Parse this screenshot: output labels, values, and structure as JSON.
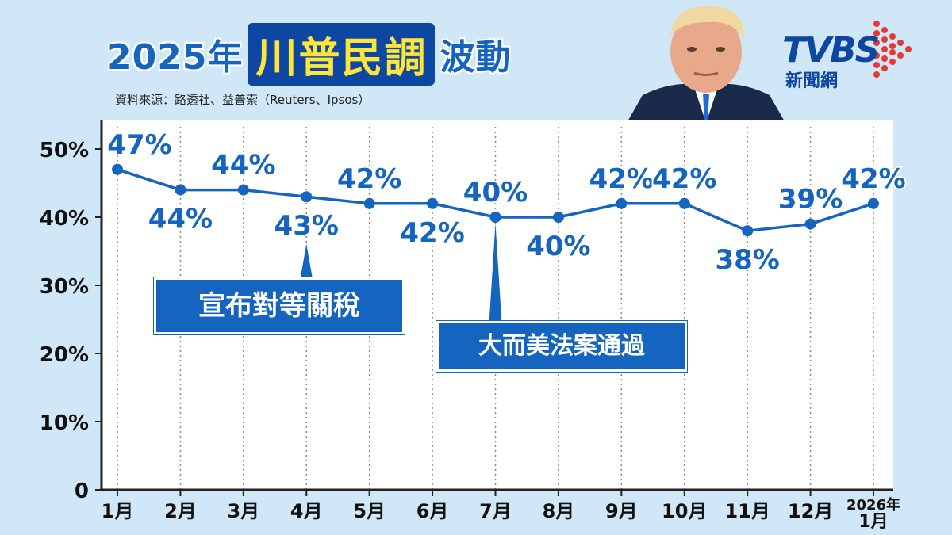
{
  "header": {
    "title_prefix": "2025年",
    "title_highlight": "川普民調",
    "title_suffix": "波動",
    "source": "資料來源：路透社、益普索（Reuters、Ipsos）"
  },
  "logo": {
    "text": "TVBS",
    "sub": "新聞網"
  },
  "colors": {
    "accent": "#1565c0",
    "highlight": "#fde53b",
    "background": "#cfe7f6",
    "line": "#1565c0"
  },
  "annotations": [
    {
      "text": "宣布對等關稅",
      "month_index": 3
    },
    {
      "text": "大而美法案通過",
      "month_index": 6
    }
  ],
  "chart_data": {
    "type": "line",
    "categories": [
      "1月",
      "2月",
      "3月",
      "4月",
      "5月",
      "6月",
      "7月",
      "8月",
      "9月",
      "10月",
      "11月",
      "12月",
      "2026年\n1月"
    ],
    "values": [
      47,
      44,
      44,
      43,
      42,
      42,
      40,
      40,
      42,
      42,
      38,
      39,
      42
    ],
    "labels": [
      "47%",
      "44%",
      "44%",
      "43%",
      "42%",
      "42%",
      "40%",
      "40%",
      "42%",
      "42%",
      "38%",
      "39%",
      "42%"
    ],
    "label_pos": [
      "above",
      "below",
      "above",
      "below",
      "above",
      "below",
      "above",
      "below",
      "above",
      "above",
      "below",
      "above",
      "above"
    ],
    "yticks": [
      0,
      10,
      20,
      30,
      40,
      50
    ],
    "ytick_labels": [
      "0",
      "10%",
      "20%",
      "30%",
      "40%",
      "50%"
    ],
    "ylim": [
      0,
      55
    ],
    "grid": "vertical-dotted"
  }
}
